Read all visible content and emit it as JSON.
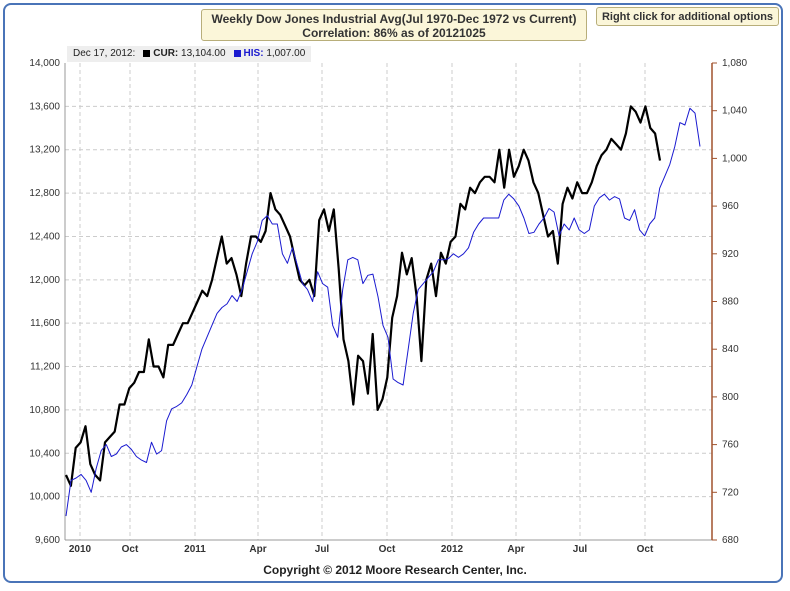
{
  "header": {
    "title_line1": "Weekly Dow Jones Industrial Avg(Jul 1970-Dec 1972 vs Current)",
    "title_line2": "Correlation: 86% as of 20121025",
    "options_label": "Right click for additional options"
  },
  "legend": {
    "date": "Dec 17, 2012:",
    "cur_label": "CUR:",
    "cur_value": "13,104.00",
    "his_label": "HIS:",
    "his_value": "1,007.00"
  },
  "footer": {
    "copyright": "Copyright © 2012 Moore Research Center, Inc."
  },
  "chart_data": {
    "type": "line",
    "colors": {
      "cur": "#000000",
      "his": "#1a1ad0",
      "right_axis": "#a0522d",
      "grid": "#cccccc"
    },
    "x_tick_labels": [
      "2010",
      "Oct",
      "2011",
      "Apr",
      "Jul",
      "Oct",
      "2012",
      "Apr",
      "Jul",
      "Oct"
    ],
    "y_left": {
      "ylim": [
        9600,
        14000
      ],
      "ticks": [
        "9,600",
        "10,000",
        "10,400",
        "10,800",
        "11,200",
        "11,600",
        "12,000",
        "12,400",
        "12,800",
        "13,200",
        "13,600",
        "14,000"
      ]
    },
    "y_right": {
      "ylim": [
        680,
        1080
      ],
      "ticks": [
        "680",
        "720",
        "760",
        "800",
        "840",
        "880",
        "920",
        "960",
        "1,000",
        "1,040",
        "1,080"
      ]
    },
    "grid": true,
    "series": [
      {
        "name": "CUR",
        "axis": "left",
        "values": [
          10200,
          10100,
          10450,
          10500,
          10650,
          10300,
          10200,
          10150,
          10500,
          10550,
          10600,
          10850,
          10850,
          11000,
          11050,
          11150,
          11150,
          11450,
          11200,
          11200,
          11100,
          11400,
          11400,
          11500,
          11600,
          11600,
          11700,
          11800,
          11900,
          11850,
          12000,
          12200,
          12400,
          12150,
          12200,
          12050,
          11850,
          12150,
          12400,
          12400,
          12350,
          12450,
          12800,
          12650,
          12600,
          12500,
          12400,
          12200,
          12000,
          11950,
          12000,
          11850,
          12550,
          12650,
          12450,
          12650,
          12100,
          11450,
          11250,
          10850,
          11300,
          11250,
          10950,
          11500,
          10800,
          10900,
          11100,
          11650,
          11850,
          12250,
          12050,
          12200,
          11850,
          11250,
          12000,
          12150,
          11850,
          12250,
          12150,
          12350,
          12400,
          12700,
          12650,
          12850,
          12800,
          12900,
          12950,
          12950,
          12900,
          13200,
          12850,
          13200,
          12950,
          13050,
          13200,
          13100,
          12900,
          12800,
          12600,
          12400,
          12450,
          12150,
          12700,
          12850,
          12750,
          12900,
          12800,
          12800,
          12900,
          13050,
          13150,
          13200,
          13300,
          13250,
          13200,
          13350,
          13600,
          13550,
          13450,
          13600,
          13400,
          13350,
          13100
        ]
      },
      {
        "name": "HIS",
        "axis": "right",
        "values": [
          700,
          730,
          732,
          735,
          730,
          720,
          740,
          755,
          760,
          750,
          752,
          758,
          760,
          756,
          750,
          747,
          745,
          762,
          752,
          755,
          780,
          790,
          792,
          795,
          802,
          810,
          825,
          840,
          850,
          860,
          870,
          875,
          878,
          885,
          880,
          890,
          905,
          920,
          930,
          948,
          952,
          945,
          945,
          920,
          912,
          925,
          910,
          895,
          890,
          880,
          905,
          895,
          892,
          860,
          850,
          890,
          915,
          917,
          915,
          895,
          902,
          903,
          884,
          860,
          850,
          815,
          812,
          810,
          840,
          870,
          890,
          895,
          900,
          905,
          915,
          915,
          916,
          920,
          917,
          920,
          925,
          938,
          945,
          950,
          950,
          950,
          950,
          965,
          970,
          966,
          960,
          950,
          937,
          938,
          945,
          950,
          958,
          955,
          935,
          945,
          940,
          950,
          940,
          937,
          940,
          960,
          967,
          970,
          965,
          968,
          966,
          950,
          948,
          957,
          940,
          935,
          945,
          950,
          975,
          985,
          995,
          1010,
          1030,
          1028,
          1042,
          1038,
          1010
        ]
      }
    ]
  }
}
